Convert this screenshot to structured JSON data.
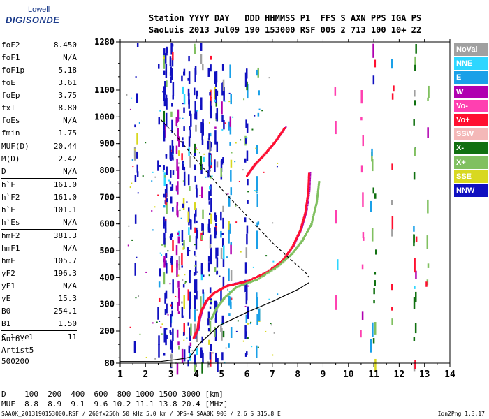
{
  "logo": {
    "top": "Lowell",
    "main": "DIGISONDE"
  },
  "header": {
    "line1": "Station YYYY DAY   DDD HHMMSS P1  FFS S AXN PPS IGA PS",
    "line2": "SaoLuis 2013 Jul09 190 153000 RSF 005 2 713 100 10+ 22"
  },
  "params": [
    {
      "name": "foF2",
      "value": "8.450"
    },
    {
      "name": "foF1",
      "value": "N/A"
    },
    {
      "name": "foF1p",
      "value": "5.18"
    },
    {
      "name": "foE",
      "value": "3.61"
    },
    {
      "name": "foEp",
      "value": "3.75"
    },
    {
      "name": "fxI",
      "value": "8.80"
    },
    {
      "name": "foEs",
      "value": "N/A"
    },
    {
      "name": "fmin",
      "value": "1.75"
    },
    {
      "sep": true
    },
    {
      "name": "MUF(D)",
      "value": "20.44"
    },
    {
      "name": "M(D)",
      "value": "2.42"
    },
    {
      "name": "D",
      "value": "N/A"
    },
    {
      "sep": true
    },
    {
      "name": "h`F",
      "value": "161.0"
    },
    {
      "name": "h`F2",
      "value": "161.0"
    },
    {
      "name": "h`E",
      "value": "101.1"
    },
    {
      "name": "h`Es",
      "value": "N/A"
    },
    {
      "sep": true
    },
    {
      "name": "hmF2",
      "value": "381.3"
    },
    {
      "name": "hmF1",
      "value": "N/A"
    },
    {
      "name": "hmE",
      "value": "105.7"
    },
    {
      "name": "yF2",
      "value": "196.3"
    },
    {
      "name": "yF1",
      "value": "N/A"
    },
    {
      "name": "yE",
      "value": "15.3"
    },
    {
      "name": "B0",
      "value": "254.1"
    },
    {
      "name": "B1",
      "value": "1.50"
    },
    {
      "sep": true
    },
    {
      "name": "C-level",
      "value": "11"
    }
  ],
  "auto": {
    "line1": "Auto:",
    "line2": "Artist5",
    "line3": "500200"
  },
  "legend": [
    {
      "label": "NoVal",
      "color": "#a0a0a0"
    },
    {
      "label": "NNE",
      "color": "#2dd6ff"
    },
    {
      "label": "E",
      "color": "#1aa0e8"
    },
    {
      "label": "W",
      "color": "#b000b0"
    },
    {
      "label": "Vo-",
      "color": "#ff40b0"
    },
    {
      "label": "Vo+",
      "color": "#ff1030"
    },
    {
      "label": "SSW",
      "color": "#f4b8b8"
    },
    {
      "label": "X-",
      "color": "#107010"
    },
    {
      "label": "X+",
      "color": "#80c060"
    },
    {
      "label": "SSE",
      "color": "#d8d820"
    },
    {
      "label": "NNW",
      "color": "#1010c0"
    }
  ],
  "footer": {
    "line_d": "D    100  200  400  600  800 1000 1500 3000 [km]",
    "line_muf": "MUF  8.8  8.9  9.1  9.6 10.2 11.1 13.8 20.4 [MHz]",
    "file": "SAA0K_2013190153000.RSF / 260fx256h 50 kHz 5.0 km / DPS-4 SAA0K 903 / 2.6 S 315.8 E",
    "version": "Ion2Png 1.3.17"
  },
  "chart_data": {
    "type": "scatter",
    "xlim": [
      1,
      14
    ],
    "ylim": [
      80,
      1280
    ],
    "x_ticks": [
      "1",
      "2",
      "3",
      "4",
      "5",
      "6",
      "7",
      "8",
      "9",
      "10",
      "11",
      "12",
      "13",
      "14"
    ],
    "y_ticks": [
      "80",
      "200",
      "300",
      "400",
      "500",
      "600",
      "700",
      "800",
      "900",
      "1000",
      "1100",
      "1280"
    ],
    "grid": false,
    "legend_position": "right",
    "series": [
      {
        "name": "Vo+",
        "values": [
          [
            3.9,
            175
          ],
          [
            4.05,
            205
          ],
          [
            4.1,
            240
          ],
          [
            4.2,
            275
          ],
          [
            4.4,
            312
          ],
          [
            4.7,
            342
          ],
          [
            5.2,
            368
          ],
          [
            6.0,
            385
          ],
          [
            6.8,
            420
          ],
          [
            7.4,
            462
          ],
          [
            7.8,
            515
          ],
          [
            8.1,
            575
          ],
          [
            8.3,
            640
          ],
          [
            8.42,
            720
          ],
          [
            8.45,
            790
          ]
        ]
      },
      {
        "name": "X+",
        "values": [
          [
            4.6,
            245
          ],
          [
            4.8,
            285
          ],
          [
            5.1,
            322
          ],
          [
            5.6,
            365
          ],
          [
            6.4,
            392
          ],
          [
            7.2,
            440
          ],
          [
            7.8,
            490
          ],
          [
            8.2,
            540
          ],
          [
            8.55,
            600
          ],
          [
            8.75,
            680
          ],
          [
            8.85,
            760
          ]
        ]
      },
      {
        "name": "Vo+",
        "values": [
          [
            6.0,
            780
          ],
          [
            6.3,
            820
          ],
          [
            6.7,
            860
          ],
          [
            7.1,
            905
          ],
          [
            7.5,
            960
          ]
        ]
      },
      {
        "name": "True height profile",
        "values": [
          [
            1.0,
            86
          ],
          [
            2.6,
            86
          ],
          [
            3.4,
            96
          ],
          [
            3.75,
            102
          ],
          [
            4.1,
            150
          ],
          [
            4.9,
            220
          ],
          [
            6.0,
            270
          ],
          [
            7.0,
            310
          ],
          [
            8.0,
            355
          ],
          [
            8.45,
            381
          ]
        ]
      },
      {
        "name": "Model",
        "values": [
          [
            2.6,
            990
          ],
          [
            3.2,
            930
          ],
          [
            4.0,
            840
          ],
          [
            5.0,
            730
          ],
          [
            6.0,
            630
          ],
          [
            7.0,
            530
          ],
          [
            7.8,
            460
          ],
          [
            8.3,
            420
          ],
          [
            8.45,
            400
          ]
        ]
      }
    ]
  }
}
